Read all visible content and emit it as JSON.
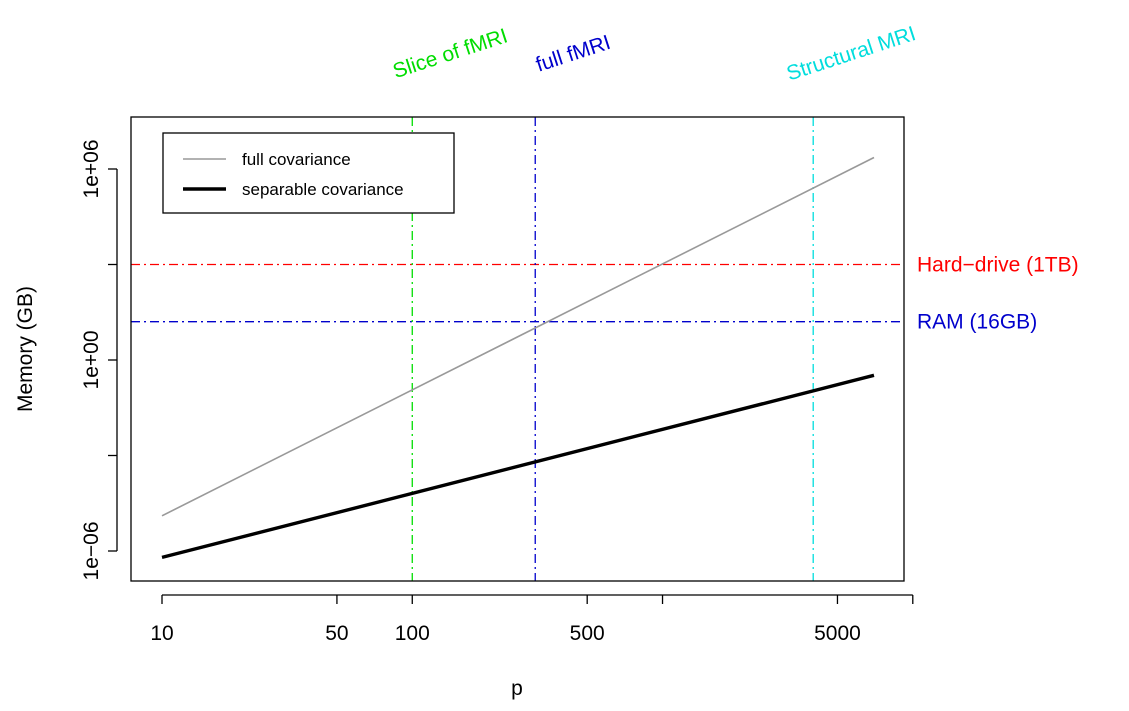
{
  "chart_data": {
    "type": "line",
    "xlabel": "p",
    "ylabel": "Memory (GB)",
    "x_scale": "log",
    "y_scale": "log",
    "xlim": [
      10,
      8000
    ],
    "ylim": [
      1e-06,
      10000000.0
    ],
    "x_ticks": [
      {
        "value": 10,
        "label": "10"
      },
      {
        "value": 50,
        "label": "50"
      },
      {
        "value": 100,
        "label": "100"
      },
      {
        "value": 500,
        "label": "500"
      },
      {
        "value": 1000,
        "label": ""
      },
      {
        "value": 5000,
        "label": "5000"
      },
      {
        "value": 10000,
        "label": ""
      }
    ],
    "y_ticks": [
      {
        "value": 1e-06,
        "label": "1e−06"
      },
      {
        "value": 0.001,
        "label": ""
      },
      {
        "value": 1,
        "label": "1e+00"
      },
      {
        "value": 1000,
        "label": ""
      },
      {
        "value": 1000000,
        "label": "1e+06"
      }
    ],
    "series": [
      {
        "name": "full covariance",
        "color": "#999999",
        "width": 1.6,
        "x": [
          10,
          7000
        ],
        "y": [
          1.28e-05,
          2300000
        ]
      },
      {
        "name": "separable covariance",
        "color": "#000000",
        "width": 3.4,
        "x": [
          10,
          7000
        ],
        "y": [
          6.3e-07,
          0.33
        ]
      }
    ],
    "vlines": [
      {
        "x": 100,
        "label": "Slice of fMRI",
        "color": "#00dd00"
      },
      {
        "x": 310,
        "label": "full fMRI",
        "color": "#0000cc"
      },
      {
        "x": 4000,
        "label": "Structural MRI",
        "color": "#00dddd"
      }
    ],
    "hlines": [
      {
        "y": 1000,
        "label": "Hard−drive (1TB)",
        "color": "#ff0000"
      },
      {
        "y": 16,
        "label": "RAM (16GB)",
        "color": "#0000cc"
      }
    ],
    "legend": {
      "placement": "top-left",
      "entries": [
        "full covariance",
        "separable covariance"
      ]
    },
    "grid": false
  }
}
